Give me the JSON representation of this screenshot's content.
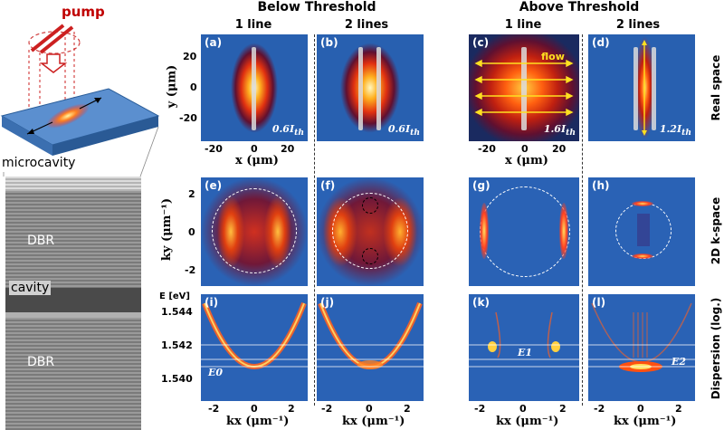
{
  "figure": {
    "pump_label": "pump",
    "microcavity_label": "microcavity",
    "dbr_top_label": "DBR",
    "cavity_label": "cavity",
    "dbr_bottom_label": "DBR",
    "below_threshold": "Below Threshold",
    "above_threshold": "Above Threshold",
    "col_titles": [
      "1 line",
      "2 lines",
      "1 line",
      "2 lines"
    ],
    "row_titles": [
      "Real space",
      "2D k-space",
      "Dispersion (log.)"
    ],
    "panel_labels": [
      "(a)",
      "(b)",
      "(c)",
      "(d)",
      "(e)",
      "(f)",
      "(g)",
      "(h)",
      "(i)",
      "(j)",
      "(k)",
      "(l)"
    ],
    "power_labels": [
      "0.6I",
      "0.6I",
      "1.6I",
      "1.2I"
    ],
    "power_sub": "th",
    "flow_label": "flow",
    "energy_labels": [
      "E0",
      "E1",
      "E2"
    ],
    "axes": {
      "x_label": "x (μm)",
      "y_label": "y (μm)",
      "ky_label": "ky (μm⁻¹)",
      "kx_label": "kx (μm⁻¹)",
      "e_label": "E [eV]",
      "x_ticks": [
        "-20",
        "0",
        "20"
      ],
      "y_ticks": [
        "20",
        "0",
        "-20"
      ],
      "k_ticks": [
        "-2",
        "0",
        "2"
      ],
      "ky_ticks": [
        "2",
        "0",
        "-2"
      ],
      "e_ticks": [
        "1.544",
        "1.542",
        "1.540"
      ]
    }
  }
}
